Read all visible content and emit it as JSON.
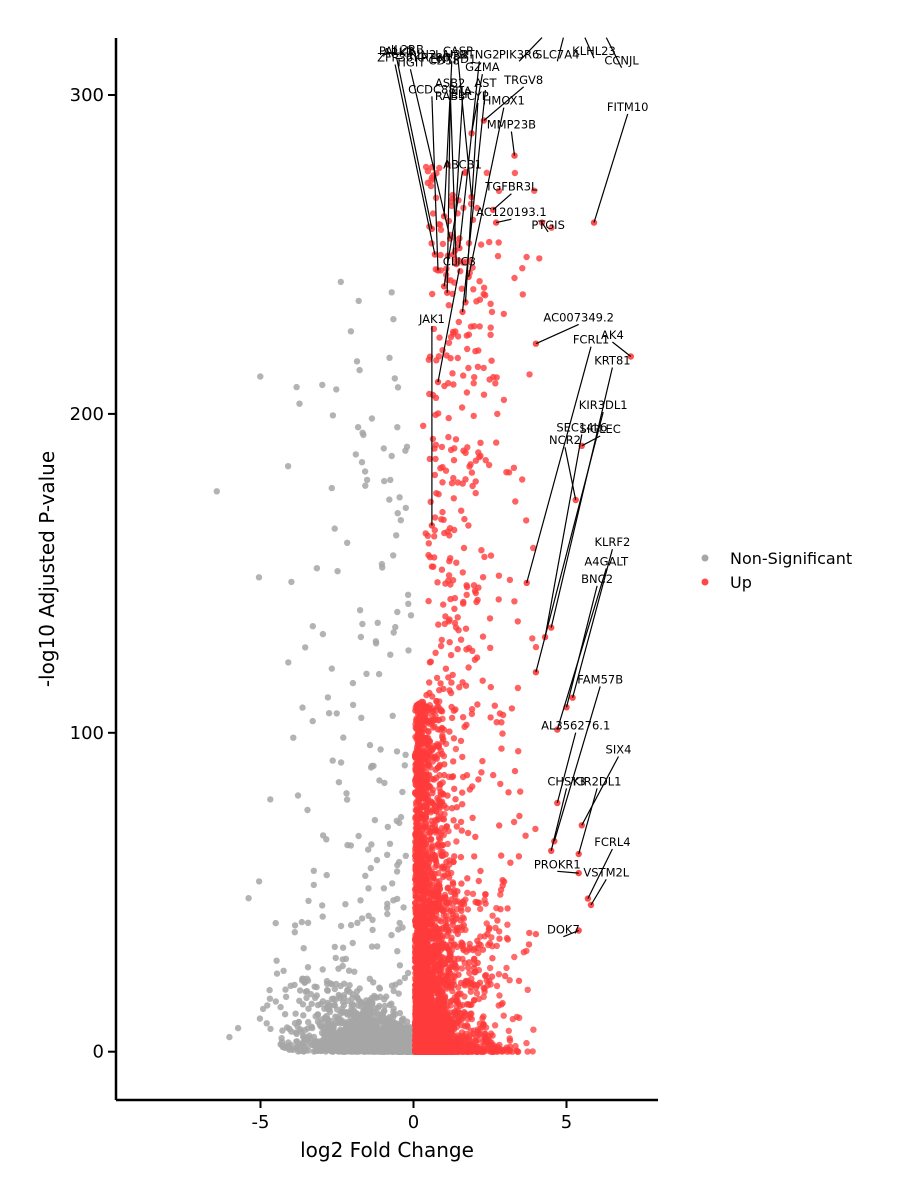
{
  "chart_data": {
    "type": "scatter",
    "xlabel": "log2 Fold Change",
    "ylabel": "-log10 Adjusted P-value",
    "xlim": [
      -9.5,
      8
    ],
    "ylim": [
      -15,
      318
    ],
    "xticks": [
      -5,
      0,
      5
    ],
    "yticks": [
      0,
      100,
      200,
      300
    ],
    "grid": false,
    "legend_position": "right",
    "colors": {
      "Non-Significant": "#a6a6a6",
      "Up": "#ff3b3b",
      "leader": "#000000"
    },
    "legend": [
      {
        "name": "Non-Significant",
        "color": "#a6a6a6"
      },
      {
        "name": "Up",
        "color": "#ff3b3b"
      }
    ],
    "labeled_points": [
      {
        "gene": "CCNJL",
        "x": 6.3,
        "y": 318
      },
      {
        "gene": "KLHL23",
        "x": 5.6,
        "y": 318
      },
      {
        "gene": "SLC7A4",
        "x": 4.9,
        "y": 318
      },
      {
        "gene": "PIK3R6",
        "x": 4.2,
        "y": 318
      },
      {
        "gene": "FITM10",
        "x": 5.9,
        "y": 260
      },
      {
        "gene": "AC007349.2",
        "x": 4.0,
        "y": 222
      },
      {
        "gene": "AK4",
        "x": 7.1,
        "y": 218
      },
      {
        "gene": "FCRL1",
        "x": 3.7,
        "y": 147
      },
      {
        "gene": "KRT81",
        "x": 4.5,
        "y": 133
      },
      {
        "gene": "KIR3DL1",
        "x": 4.0,
        "y": 119
      },
      {
        "gene": "KLRF2",
        "x": 5.2,
        "y": 111
      },
      {
        "gene": "SEC14L6",
        "x": 4.3,
        "y": 130
      },
      {
        "gene": "SIGLEC",
        "x": 5.5,
        "y": 190
      },
      {
        "gene": "NCR2",
        "x": 5.3,
        "y": 173
      },
      {
        "gene": "A4GALT",
        "x": 4.7,
        "y": 101
      },
      {
        "gene": "BNC2",
        "x": 5.0,
        "y": 108
      },
      {
        "gene": "FAM57B",
        "x": 4.6,
        "y": 66
      },
      {
        "gene": "AL356276.1",
        "x": 4.7,
        "y": 78
      },
      {
        "gene": "SIX4",
        "x": 5.5,
        "y": 71
      },
      {
        "gene": "KIR2DL1",
        "x": 5.4,
        "y": 62
      },
      {
        "gene": "CHSY3",
        "x": 4.5,
        "y": 63
      },
      {
        "gene": "FCRL4",
        "x": 5.7,
        "y": 48
      },
      {
        "gene": "VSTM2L",
        "x": 5.8,
        "y": 46
      },
      {
        "gene": "PROKR1",
        "x": 5.4,
        "y": 56
      },
      {
        "gene": "DOK7",
        "x": 5.4,
        "y": 38
      },
      {
        "gene": "PTGIS",
        "x": 4.2,
        "y": 260
      },
      {
        "gene": "AC120193.1",
        "x": 2.7,
        "y": 260
      },
      {
        "gene": "TGFBR3L",
        "x": 2.6,
        "y": 264
      },
      {
        "gene": "MMP23B",
        "x": 3.3,
        "y": 281
      },
      {
        "gene": "TRGV8",
        "x": 2.3,
        "y": 292
      },
      {
        "gene": "GZMA",
        "x": 1.9,
        "y": 288
      },
      {
        "gene": "HMOX1",
        "x": 1.8,
        "y": 243
      },
      {
        "gene": "AST",
        "x": 1.6,
        "y": 232
      },
      {
        "gene": "CYP",
        "x": 1.7,
        "y": 235
      },
      {
        "gene": "ABCB1",
        "x": 1.0,
        "y": 240
      },
      {
        "gene": "CLIC3",
        "x": 0.8,
        "y": 210
      },
      {
        "gene": "JAK1",
        "x": 0.6,
        "y": 165
      },
      {
        "gene": "PALLD",
        "x": 0.6,
        "y": 258
      },
      {
        "gene": "ZFP36",
        "x": 0.7,
        "y": 250
      },
      {
        "gene": "TIGIT",
        "x": 1.2,
        "y": 255
      },
      {
        "gene": "LAIR2",
        "x": 1.0,
        "y": 262
      },
      {
        "gene": "CASP",
        "x": 1.9,
        "y": 268
      },
      {
        "gene": "CCDC88",
        "x": 0.8,
        "y": 245
      },
      {
        "gene": "RAB3",
        "x": 1.1,
        "y": 238
      },
      {
        "gene": "PRG4",
        "x": 1.5,
        "y": 255
      },
      {
        "gene": "TIA",
        "x": 1.3,
        "y": 250
      },
      {
        "gene": "ASB2",
        "x": 1.4,
        "y": 247
      },
      {
        "gene": "NTNG2",
        "x": 1.5,
        "y": 252
      }
    ],
    "top_labels": [
      {
        "text": "PALLD",
        "x": -0.55,
        "y": 312.5
      },
      {
        "text": "ARK3",
        "x": -0.5,
        "y": 312.0
      },
      {
        "text": "IL2RB",
        "x": -0.2,
        "y": 313.0
      },
      {
        "text": "RIN2",
        "x": 0.3,
        "y": 311.5
      },
      {
        "text": "CASP",
        "x": 1.45,
        "y": 312.5
      },
      {
        "text": "LAIR2",
        "x": 1.25,
        "y": 311.5
      },
      {
        "text": "ZFP36",
        "x": -0.6,
        "y": 310.5
      },
      {
        "text": "KRT86",
        "x": 0.6,
        "y": 310.5
      },
      {
        "text": "CD58",
        "x": 1.0,
        "y": 309.5
      },
      {
        "text": "TIGIT",
        "x": -0.1,
        "y": 309.0
      },
      {
        "text": "ENTPD1",
        "x": 1.3,
        "y": 310.0
      },
      {
        "text": "NTNG2",
        "x": 2.15,
        "y": 311.5
      },
      {
        "text": "GZMA",
        "x": 2.25,
        "y": 307.5
      },
      {
        "text": "TRGV8",
        "x": 3.6,
        "y": 303.5
      },
      {
        "text": "AST",
        "x": 2.35,
        "y": 302.5
      },
      {
        "text": "ASB2",
        "x": 1.2,
        "y": 302.5
      },
      {
        "text": "CCDC88",
        "x": 0.6,
        "y": 300.5
      },
      {
        "text": "TIA",
        "x": 1.6,
        "y": 300.0
      },
      {
        "text": "RAB3",
        "x": 1.2,
        "y": 298.5
      },
      {
        "text": "ELP",
        "x": 1.55,
        "y": 299.0
      },
      {
        "text": "CYP",
        "x": 2.1,
        "y": 298.5
      },
      {
        "text": "HMOX1",
        "x": 2.95,
        "y": 297.0
      },
      {
        "text": "MMP23B",
        "x": 3.2,
        "y": 289.5
      },
      {
        "text": "PIK3R6",
        "x": 3.45,
        "y": 311.5
      },
      {
        "text": "SLC7A4",
        "x": 4.7,
        "y": 311.5
      },
      {
        "text": "KLHL23",
        "x": 5.9,
        "y": 312.5
      },
      {
        "text": "CCNJL",
        "x": 6.8,
        "y": 309.5
      },
      {
        "text": "FITM10",
        "x": 7.0,
        "y": 295.0
      },
      {
        "text": "ABCB1",
        "x": 1.6,
        "y": 277.0
      },
      {
        "text": "TGFBR3L",
        "x": 3.2,
        "y": 270.0
      },
      {
        "text": "AC120193.1",
        "x": 3.2,
        "y": 262.0
      },
      {
        "text": "PTGIS",
        "x": 4.4,
        "y": 258.0
      },
      {
        "text": "CLIC3",
        "x": 1.5,
        "y": 246.5
      },
      {
        "text": "JAK1",
        "x": 0.6,
        "y": 228.5
      },
      {
        "text": "AC007349.2",
        "x": 5.4,
        "y": 229.0
      },
      {
        "text": "AK4",
        "x": 6.5,
        "y": 223.5
      },
      {
        "text": "FCRL1",
        "x": 5.8,
        "y": 222.0
      },
      {
        "text": "KRT81",
        "x": 6.5,
        "y": 215.5
      },
      {
        "text": "KIR3DL1",
        "x": 6.2,
        "y": 201.5
      },
      {
        "text": "SEC14L6",
        "x": 5.5,
        "y": 194.5
      },
      {
        "text": "SIGLEC",
        "x": 6.1,
        "y": 194.0
      },
      {
        "text": "NCR2",
        "x": 4.95,
        "y": 190.5
      },
      {
        "text": "KLRF2",
        "x": 6.5,
        "y": 158.5
      },
      {
        "text": "A4GALT",
        "x": 6.3,
        "y": 152.5
      },
      {
        "text": "BNC2",
        "x": 6.0,
        "y": 147.0
      },
      {
        "text": "FAM57B",
        "x": 6.1,
        "y": 115.5
      },
      {
        "text": "AL356276.1",
        "x": 5.3,
        "y": 101.0
      },
      {
        "text": "SIX4",
        "x": 6.7,
        "y": 93.5
      },
      {
        "text": "CHSY3",
        "x": 5.0,
        "y": 83.5
      },
      {
        "text": "KIR2DL1",
        "x": 6.0,
        "y": 83.5
      },
      {
        "text": "FCRL4",
        "x": 6.5,
        "y": 64.5
      },
      {
        "text": "PROKR1",
        "x": 4.7,
        "y": 57.5
      },
      {
        "text": "VSTM2L",
        "x": 6.3,
        "y": 55.0
      },
      {
        "text": "DOK7",
        "x": 4.9,
        "y": 37.0
      }
    ]
  }
}
